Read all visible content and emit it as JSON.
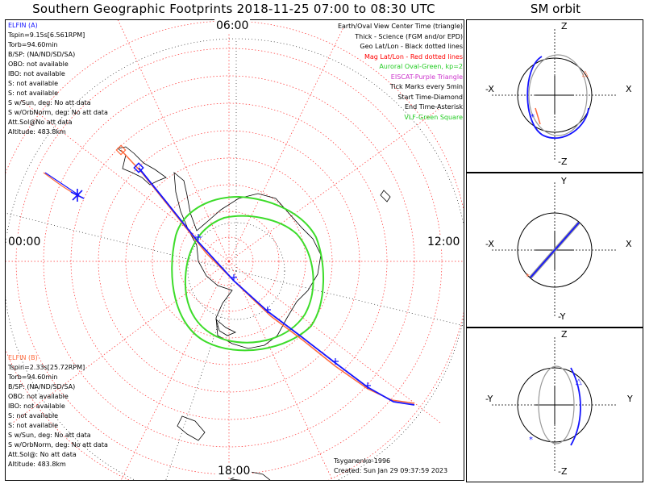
{
  "title": "Southern Geographic Footprints 2018-11-25 07:00 to 08:30 UTC",
  "orbit_title": "SM orbit",
  "clock_labels": {
    "top": "06:00",
    "left": "00:00",
    "right": "12:00",
    "bottom": "18:00"
  },
  "elfin_a": {
    "name": "ELFIN (A)",
    "color": "#1515ff",
    "lines": [
      "Tspin=9.15s[6.561RPM]",
      "Torb=94.60min",
      "B/SP: (NA/ND/SD/SA)",
      "OBO: not available",
      "IBO: not available",
      "S: not available",
      "S: not available",
      "S w/Sun, deg: No att data",
      "S w/OrbNorm, deg: No att data",
      "Att.Sol@No att data",
      "Altitude: 483.8km"
    ]
  },
  "elfin_b": {
    "name": "ELFIN (B)",
    "color": "#ff6a3d",
    "lines": [
      "Tspin=2.33s[25.72RPM]",
      "Torb=94.60min",
      "B/SP: (NA/ND/SD/SA)",
      "OBO: not available",
      "IBO: not available",
      "S: not available",
      "S: not available",
      "S w/Sun, deg: No att data",
      "S w/OrbNorm, deg: No att data",
      "Att.Sol@: No att data",
      "Altitude: 483.8km"
    ]
  },
  "legend": [
    {
      "text": "Earth/Oval View Center Time (triangle)",
      "color": "#000000"
    },
    {
      "text": "Thick - Science (FGM and/or EPD)",
      "color": "#000000"
    },
    {
      "text": "Geo Lat/Lon - Black dotted lines",
      "color": "#000000"
    },
    {
      "text": "Mag Lat/Lon - Red dotted lines",
      "color": "#ff0000"
    },
    {
      "text": "Auroral Oval-Green, kp=2",
      "color": "#22cc22"
    },
    {
      "text": "EISCAT-Purple Triangle",
      "color": "#cc33cc"
    },
    {
      "text": "Tick Marks every 5min",
      "color": "#000000"
    },
    {
      "text": "Start Time-Diamond",
      "color": "#000000"
    },
    {
      "text": "End Time-Asterisk",
      "color": "#000000"
    },
    {
      "text": "VLF-Green Square",
      "color": "#22cc22"
    }
  ],
  "credit": {
    "model": "Tsyganenko-1996",
    "created": "Created: Sun Jan 29 09:37:59 2023"
  },
  "orbit_panels": [
    {
      "top": "Z",
      "bottom": "-Z",
      "left": "-X",
      "right": "X"
    },
    {
      "top": "Y",
      "bottom": "-Y",
      "left": "-X",
      "right": "X"
    },
    {
      "top": "Z",
      "bottom": "-Z",
      "left": "-Y",
      "right": "Y"
    }
  ],
  "colors": {
    "elfin_a": "#1515ff",
    "elfin_b": "#ff6a3d",
    "mag_grid": "#ff3030",
    "oval": "#3ddc2a"
  }
}
